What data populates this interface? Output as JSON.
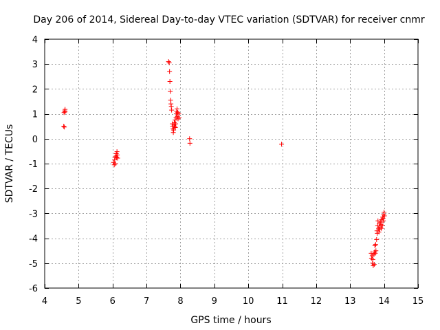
{
  "chart_data": {
    "type": "scatter",
    "title": "Day 206 of 2014, Sidereal Day-to-day VTEC variation (SDTVAR) for receiver cnmr",
    "xlabel": "GPS time / hours",
    "ylabel": "SDTVAR / TECUs",
    "xlim": [
      4,
      15
    ],
    "ylim": [
      -6,
      4
    ],
    "xticks": [
      4,
      5,
      6,
      7,
      8,
      9,
      10,
      11,
      12,
      13,
      14,
      15
    ],
    "yticks": [
      -6,
      -5,
      -4,
      -3,
      -2,
      -1,
      0,
      1,
      2,
      3,
      4
    ],
    "grid": true,
    "marker": "+",
    "color": "#ff0000",
    "series": [
      {
        "name": "SDTVAR",
        "points": [
          [
            4.57,
            1.05
          ],
          [
            4.59,
            1.12
          ],
          [
            4.6,
            1.18
          ],
          [
            4.6,
            1.08
          ],
          [
            4.56,
            0.5
          ],
          [
            4.58,
            0.47
          ],
          [
            6.03,
            -0.95
          ],
          [
            6.05,
            -1.05
          ],
          [
            6.06,
            -0.85
          ],
          [
            6.07,
            -0.75
          ],
          [
            6.08,
            -1.0
          ],
          [
            6.1,
            -0.7
          ],
          [
            6.11,
            -0.6
          ],
          [
            6.12,
            -0.75
          ],
          [
            6.13,
            -0.52
          ],
          [
            6.14,
            -0.65
          ],
          [
            6.15,
            -0.78
          ],
          [
            7.65,
            3.1
          ],
          [
            7.67,
            3.05
          ],
          [
            7.68,
            2.7
          ],
          [
            7.69,
            2.3
          ],
          [
            7.7,
            1.9
          ],
          [
            7.71,
            1.55
          ],
          [
            7.72,
            1.4
          ],
          [
            7.73,
            1.3
          ],
          [
            7.74,
            1.15
          ],
          [
            7.76,
            0.6
          ],
          [
            7.77,
            0.5
          ],
          [
            7.78,
            0.4
          ],
          [
            7.79,
            0.25
          ],
          [
            7.8,
            0.35
          ],
          [
            7.81,
            0.55
          ],
          [
            7.82,
            0.65
          ],
          [
            7.83,
            0.5
          ],
          [
            7.84,
            0.75
          ],
          [
            7.85,
            0.45
          ],
          [
            7.86,
            0.6
          ],
          [
            7.87,
            0.85
          ],
          [
            7.88,
            1.0
          ],
          [
            7.89,
            1.1
          ],
          [
            7.9,
            1.2
          ],
          [
            7.91,
            0.9
          ],
          [
            7.92,
            1.05
          ],
          [
            7.93,
            0.8
          ],
          [
            7.95,
            1.0
          ],
          [
            7.96,
            0.85
          ],
          [
            8.27,
            0.0
          ],
          [
            8.28,
            -0.18
          ],
          [
            10.98,
            -0.22
          ],
          [
            13.62,
            -4.6
          ],
          [
            13.63,
            -4.8
          ],
          [
            13.65,
            -4.7
          ],
          [
            13.66,
            -5.0
          ],
          [
            13.67,
            -4.85
          ],
          [
            13.68,
            -5.1
          ],
          [
            13.7,
            -4.65
          ],
          [
            13.71,
            -5.05
          ],
          [
            13.72,
            -4.55
          ],
          [
            13.73,
            -4.3
          ],
          [
            13.74,
            -4.6
          ],
          [
            13.75,
            -4.25
          ],
          [
            13.76,
            -4.5
          ],
          [
            13.78,
            -4.05
          ],
          [
            13.79,
            -3.7
          ],
          [
            13.8,
            -3.8
          ],
          [
            13.81,
            -3.5
          ],
          [
            13.82,
            -3.3
          ],
          [
            13.84,
            -3.6
          ],
          [
            13.85,
            -3.75
          ],
          [
            13.86,
            -3.4
          ],
          [
            13.87,
            -3.65
          ],
          [
            13.88,
            -3.55
          ],
          [
            13.9,
            -3.35
          ],
          [
            13.91,
            -3.45
          ],
          [
            13.92,
            -3.6
          ],
          [
            13.93,
            -3.25
          ],
          [
            13.95,
            -3.5
          ],
          [
            13.96,
            -3.15
          ],
          [
            13.97,
            -3.2
          ],
          [
            13.98,
            -3.3
          ],
          [
            13.99,
            -3.05
          ],
          [
            14.0,
            -2.95
          ],
          [
            14.01,
            -3.1
          ]
        ]
      }
    ]
  }
}
